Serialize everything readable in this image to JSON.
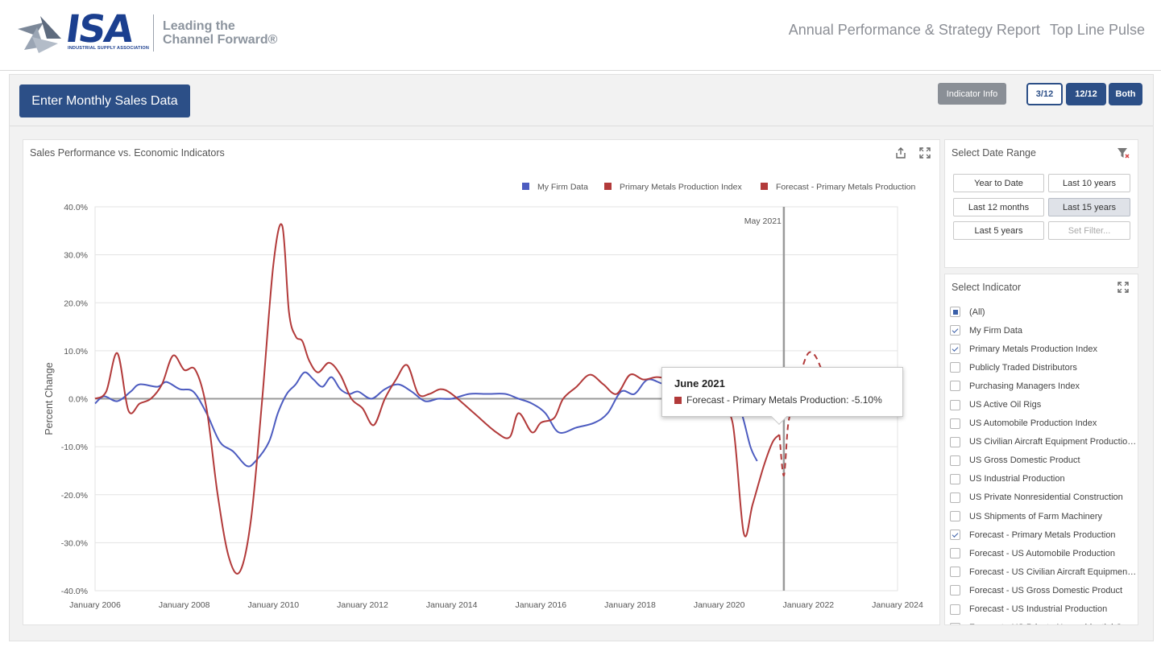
{
  "header": {
    "logo_text": "ISA",
    "logo_subtitle": "INDUSTRIAL SUPPLY ASSOCIATION",
    "tagline_line1": "Leading the",
    "tagline_line2": "Channel Forward®",
    "nav": [
      "Annual Performance & Strategy Report",
      "Top Line Pulse"
    ]
  },
  "toolbar": {
    "enter_button": "Enter Monthly Sales Data",
    "info_button": "Indicator Info",
    "periods": [
      "3/12",
      "12/12",
      "Both"
    ],
    "active_period": "3/12"
  },
  "chart_card": {
    "title": "Sales Performance vs. Economic Indicators"
  },
  "tooltip": {
    "title": "June 2021",
    "series": "Forecast - Primary Metals Production",
    "value": "-5.10%"
  },
  "date_range": {
    "title": "Select Date Range",
    "buttons": [
      "Year to Date",
      "Last 10 years",
      "Last 12 months",
      "Last 15 years",
      "Last 5 years",
      "Set Filter..."
    ],
    "selected": "Last 15 years"
  },
  "indicators": {
    "title": "Select Indicator",
    "items": [
      {
        "label": "(All)",
        "state": "partial"
      },
      {
        "label": "My Firm Data",
        "state": "checked"
      },
      {
        "label": "Primary Metals Production Index",
        "state": "checked"
      },
      {
        "label": "Publicly Traded Distributors",
        "state": "unchecked"
      },
      {
        "label": "Purchasing Managers Index",
        "state": "unchecked"
      },
      {
        "label": "US Active Oil Rigs",
        "state": "unchecked"
      },
      {
        "label": "US Automobile Production Index",
        "state": "unchecked"
      },
      {
        "label": "US Civilian Aircraft Equipment Production...",
        "state": "unchecked"
      },
      {
        "label": "US Gross Domestic Product",
        "state": "unchecked"
      },
      {
        "label": "US Industrial Production",
        "state": "unchecked"
      },
      {
        "label": "US Private Nonresidential Construction",
        "state": "unchecked"
      },
      {
        "label": "US Shipments of Farm Machinery",
        "state": "unchecked"
      },
      {
        "label": "Forecast - Primary Metals Production",
        "state": "checked"
      },
      {
        "label": "Forecast - US Automobile Production",
        "state": "unchecked"
      },
      {
        "label": "Forecast - US Civilian Aircraft Equipment ...",
        "state": "unchecked"
      },
      {
        "label": "Forecast - US Gross Domestic Product",
        "state": "unchecked"
      },
      {
        "label": "Forecast - US Industrial Production",
        "state": "unchecked"
      },
      {
        "label": "Forecast - US Private Nonresidential Con...",
        "state": "unchecked"
      }
    ]
  },
  "colors": {
    "brand_blue": "#2c4f87",
    "my_firm": "#4d5cc0",
    "metals": "#b23a3a",
    "marker_line": "#9a9a9a"
  },
  "chart_data": {
    "type": "line",
    "ylabel": "Percent Change",
    "ylim": [
      -40,
      40
    ],
    "yticks": [
      "-40.0%",
      "-30.0%",
      "-20.0%",
      "-10.0%",
      "0.0%",
      "10.0%",
      "20.0%",
      "30.0%",
      "40.0%"
    ],
    "xlim": [
      2006,
      2024
    ],
    "xticks": [
      "January 2006",
      "January 2008",
      "January 2010",
      "January 2012",
      "January 2014",
      "January 2016",
      "January 2018",
      "January 2020",
      "January 2022",
      "January 2024"
    ],
    "legend_position": "top-right",
    "grid": true,
    "marker": {
      "x": 2021.45,
      "label": "May 2021"
    },
    "series": [
      {
        "name": "My Firm Data",
        "color": "#4d5cc0",
        "style": "solid",
        "x": [
          2006,
          2006.2,
          2006.5,
          2006.8,
          2007,
          2007.4,
          2007.6,
          2007.9,
          2008.2,
          2008.5,
          2008.8,
          2009.1,
          2009.4,
          2009.6,
          2009.9,
          2010.1,
          2010.3,
          2010.5,
          2010.7,
          2010.9,
          2011.1,
          2011.3,
          2011.5,
          2011.7,
          2011.9,
          2012.2,
          2012.5,
          2012.8,
          2013.1,
          2013.4,
          2013.7,
          2014,
          2014.4,
          2014.8,
          2015.2,
          2015.5,
          2015.8,
          2016.1,
          2016.4,
          2016.8,
          2017.2,
          2017.5,
          2017.8,
          2018.1,
          2018.4,
          2018.8,
          2019.2,
          2019.6,
          2020,
          2020.3,
          2020.5,
          2020.7,
          2020.85
        ],
        "y": [
          -1,
          0.5,
          -0.5,
          1.5,
          3,
          2.5,
          3.5,
          2,
          1.5,
          -3,
          -9,
          -11,
          -14,
          -13,
          -9,
          -3,
          1,
          3,
          5.5,
          4,
          2.5,
          4.5,
          2,
          1,
          1.5,
          0,
          2,
          3,
          1.5,
          -0.5,
          0,
          0,
          1,
          1,
          1,
          0,
          -1,
          -3,
          -7,
          -6,
          -5,
          -3,
          1.5,
          1,
          4,
          3,
          4,
          3.5,
          3,
          0,
          -3,
          -10,
          -13
        ]
      },
      {
        "name": "Primary Metals Production Index",
        "color": "#b23a3a",
        "style": "solid",
        "x": [
          2006,
          2006.25,
          2006.5,
          2006.75,
          2007,
          2007.25,
          2007.5,
          2007.75,
          2008,
          2008.25,
          2008.5,
          2008.75,
          2009,
          2009.25,
          2009.5,
          2009.75,
          2010,
          2010.2,
          2010.35,
          2010.5,
          2010.65,
          2010.8,
          2011,
          2011.25,
          2011.5,
          2011.75,
          2012,
          2012.25,
          2012.5,
          2012.75,
          2013,
          2013.25,
          2013.5,
          2013.75,
          2014,
          2014.5,
          2015,
          2015.3,
          2015.5,
          2015.8,
          2016,
          2016.3,
          2016.5,
          2016.8,
          2017.1,
          2017.4,
          2017.7,
          2018,
          2018.3,
          2018.6,
          2018.9,
          2019.3,
          2019.7,
          2020,
          2020.3,
          2020.55,
          2020.75,
          2021,
          2021.2,
          2021.35
        ],
        "y": [
          0,
          1.5,
          9.5,
          -2.5,
          -1,
          0,
          3,
          9,
          6,
          6,
          -2,
          -20,
          -33,
          -36,
          -25,
          0,
          28,
          36,
          18,
          13,
          12,
          8,
          5.5,
          7.5,
          5,
          0,
          -2,
          -5.5,
          0,
          4,
          7,
          1,
          1,
          2,
          1,
          -3,
          -7,
          -8,
          -3,
          -7,
          -5,
          -4,
          0,
          2.5,
          5,
          3,
          1,
          5,
          4,
          4.5,
          4,
          3,
          -2,
          -3.5,
          -5,
          -28,
          -22,
          -14,
          -9,
          -7.5
        ]
      },
      {
        "name": "Forecast - Primary Metals Production",
        "color": "#b23a3a",
        "style": "dashed",
        "x": [
          2021.35,
          2021.45,
          2021.55,
          2021.7,
          2021.85,
          2022,
          2022.15,
          2022.3
        ],
        "y": [
          -7.5,
          -16,
          -5.1,
          0,
          6,
          9.5,
          9,
          6
        ]
      }
    ]
  }
}
